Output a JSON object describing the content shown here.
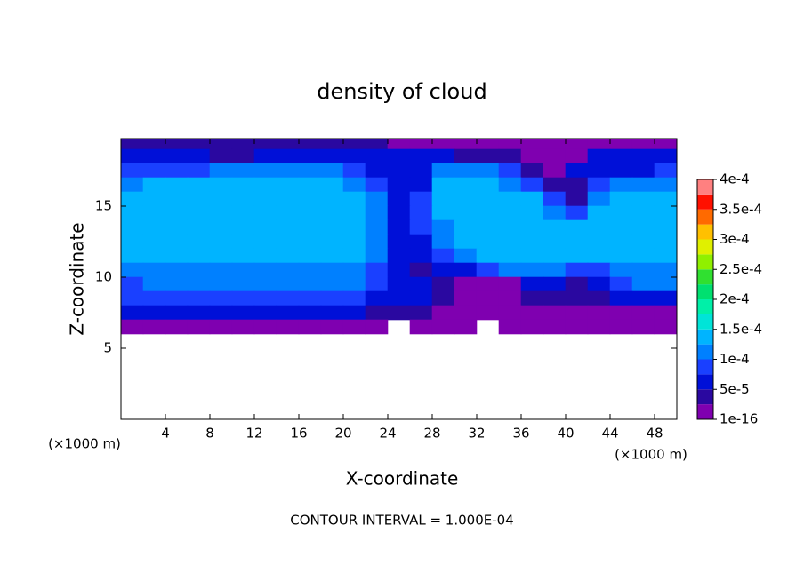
{
  "chart_data": {
    "type": "contour",
    "title": "density of cloud",
    "x_label": "X-coordinate",
    "y_label": "Z-coordinate",
    "x_unit": "(×1000 m)",
    "y_unit": "(×1000 m)",
    "footer": "CONTOUR INTERVAL = 1.000E-04",
    "xlim": [
      0,
      50
    ],
    "ylim": [
      0,
      19.75
    ],
    "xticks": [
      4,
      8,
      12,
      16,
      20,
      24,
      28,
      32,
      36,
      40,
      44,
      48
    ],
    "yticks": [
      5,
      10,
      15
    ],
    "x": [
      1,
      3,
      5,
      7,
      9,
      11,
      13,
      15,
      17,
      19,
      21,
      23,
      25,
      27,
      29,
      31,
      33,
      35,
      37,
      39,
      41,
      43,
      45,
      47,
      49
    ],
    "z": [
      19.5,
      18.5,
      17.5,
      16.5,
      15.5,
      14.5,
      13.5,
      12.5,
      11.5,
      10.5,
      9.5,
      8.5,
      7.5,
      6.5
    ],
    "values": [
      [
        3e-05,
        3e-05,
        3e-05,
        3e-05,
        3e-05,
        3e-05,
        3e-05,
        3e-05,
        3e-05,
        3e-05,
        3e-05,
        3e-05,
        2e-05,
        2e-05,
        2e-05,
        2e-05,
        2e-05,
        2e-05,
        2e-05,
        2e-05,
        2e-05,
        2e-05,
        2e-05,
        2e-05,
        2e-05
      ],
      [
        6e-05,
        6e-05,
        6e-05,
        6e-05,
        4e-05,
        4e-05,
        6e-05,
        6e-05,
        6e-05,
        6e-05,
        6e-05,
        5e-05,
        5e-05,
        5e-05,
        5e-05,
        4e-05,
        4e-05,
        4e-05,
        2e-05,
        2e-05,
        2e-05,
        5e-05,
        5e-05,
        5e-05,
        5e-05
      ],
      [
        8e-05,
        9e-05,
        9e-05,
        9e-05,
        0.00012,
        0.00012,
        0.00012,
        0.00012,
        0.00012,
        0.00012,
        9e-05,
        7e-05,
        6e-05,
        6e-05,
        0.0001,
        0.0001,
        0.0001,
        8e-05,
        3e-05,
        2e-05,
        5e-05,
        7e-05,
        7e-05,
        7e-05,
        8e-05
      ],
      [
        0.000105,
        0.00013,
        0.00013,
        0.00013,
        0.00013,
        0.00013,
        0.00013,
        0.00013,
        0.00013,
        0.00013,
        0.00012,
        9e-05,
        6e-05,
        7e-05,
        0.00013,
        0.00013,
        0.00013,
        0.00012,
        9e-05,
        4e-05,
        3e-05,
        8e-05,
        0.0001,
        0.00012,
        0.00012
      ],
      [
        0.00014,
        0.00014,
        0.00014,
        0.00014,
        0.00014,
        0.00014,
        0.00014,
        0.00014,
        0.00014,
        0.00014,
        0.00013,
        0.00011,
        6e-05,
        8e-05,
        0.00014,
        0.00014,
        0.00014,
        0.00014,
        0.00013,
        8e-05,
        4e-05,
        0.00011,
        0.00014,
        0.00014,
        0.00014
      ],
      [
        0.00014,
        0.00014,
        0.00014,
        0.00014,
        0.00014,
        0.00014,
        0.00014,
        0.00014,
        0.00014,
        0.00014,
        0.00014,
        0.000115,
        5e-05,
        9e-05,
        0.00014,
        0.00014,
        0.00014,
        0.00014,
        0.00014,
        0.00011,
        9e-05,
        0.00014,
        0.00014,
        0.00014,
        0.00014
      ],
      [
        0.000135,
        0.000135,
        0.000135,
        0.000135,
        0.000135,
        0.000135,
        0.000135,
        0.000135,
        0.000135,
        0.000135,
        0.000135,
        0.00011,
        5e-05,
        8e-05,
        0.00012,
        0.000135,
        0.000135,
        0.000135,
        0.000135,
        0.000135,
        0.000135,
        0.000135,
        0.000135,
        0.000135,
        0.000135
      ],
      [
        0.00013,
        0.00013,
        0.00013,
        0.00013,
        0.00013,
        0.00013,
        0.00013,
        0.00013,
        0.00013,
        0.00013,
        0.00013,
        0.000105,
        5e-05,
        7e-05,
        0.00011,
        0.00013,
        0.00013,
        0.00013,
        0.00013,
        0.00013,
        0.00013,
        0.00013,
        0.00013,
        0.00013,
        0.00013
      ],
      [
        0.000125,
        0.000125,
        0.000125,
        0.000125,
        0.000125,
        0.000125,
        0.000125,
        0.000125,
        0.000125,
        0.000125,
        0.000125,
        0.0001,
        6e-05,
        6e-05,
        9e-05,
        0.00011,
        0.000125,
        0.000125,
        0.000125,
        0.000125,
        0.000125,
        0.000125,
        0.000125,
        0.000125,
        0.000125
      ],
      [
        0.00011,
        0.00012,
        0.00012,
        0.00012,
        0.00012,
        0.00012,
        0.00012,
        0.00012,
        0.00012,
        0.00012,
        0.00012,
        9e-05,
        6e-05,
        4e-05,
        5e-05,
        6e-05,
        9e-05,
        0.000115,
        0.000115,
        0.000115,
        9e-05,
        8e-05,
        0.000115,
        0.000115,
        0.000115
      ],
      [
        9e-05,
        0.00011,
        0.00011,
        0.00011,
        0.00011,
        0.00011,
        0.00011,
        0.00011,
        0.00011,
        0.00011,
        0.00011,
        8e-05,
        5e-05,
        5e-05,
        3e-05,
        2e-05,
        2e-05,
        2e-05,
        6e-05,
        5e-05,
        4e-05,
        7e-05,
        9e-05,
        0.0001,
        0.0001
      ],
      [
        8e-05,
        8e-05,
        8e-05,
        8e-05,
        8e-05,
        8e-05,
        8e-05,
        8e-05,
        8e-05,
        8e-05,
        8e-05,
        6e-05,
        5e-05,
        5e-05,
        3e-05,
        2e-05,
        2e-05,
        2e-05,
        4e-05,
        3e-05,
        4e-05,
        3e-05,
        5e-05,
        5e-05,
        5e-05
      ],
      [
        5e-05,
        5e-05,
        5e-05,
        5e-05,
        5e-05,
        5e-05,
        5e-05,
        5e-05,
        5e-05,
        5e-05,
        5e-05,
        4e-05,
        4e-05,
        4e-05,
        2e-05,
        2e-05,
        2e-05,
        2e-05,
        2e-05,
        2e-05,
        2e-05,
        2e-05,
        2e-05,
        2e-05,
        2e-05
      ],
      [
        1.5e-05,
        1.5e-05,
        1.5e-05,
        1.5e-05,
        1.5e-05,
        1.5e-05,
        1.5e-05,
        1.5e-05,
        1.5e-05,
        1.5e-05,
        1.5e-05,
        1.5e-05,
        0,
        1e-05,
        1e-05,
        1e-05,
        0,
        1e-05,
        1e-05,
        1e-05,
        1e-05,
        1e-05,
        1e-05,
        1e-05,
        1e-05
      ]
    ],
    "levels": [
      1e-16,
      2.5e-05,
      5e-05,
      7.5e-05,
      0.0001,
      0.000125,
      0.00015,
      0.000175,
      0.0002,
      0.000225,
      0.00025,
      0.000275,
      0.0003,
      0.000325,
      0.00035,
      0.000375,
      0.0004
    ],
    "colors": [
      "#7f00b0",
      "#2a08a0",
      "#0010d8",
      "#1a40ff",
      "#0080ff",
      "#00b4ff",
      "#00e4d8",
      "#00f0a8",
      "#00e070",
      "#30e030",
      "#90f000",
      "#e0f000",
      "#ffc000",
      "#ff6a00",
      "#ff1000",
      "#ff8080"
    ],
    "colorbar_ticks": [
      {
        "value": 1e-16,
        "label": "1e-16"
      },
      {
        "value": 5e-05,
        "label": "5e-5"
      },
      {
        "value": 0.0001,
        "label": "1e-4"
      },
      {
        "value": 0.00015,
        "label": "1.5e-4"
      },
      {
        "value": 0.0002,
        "label": "2e-4"
      },
      {
        "value": 0.00025,
        "label": "2.5e-4"
      },
      {
        "value": 0.0003,
        "label": "3e-4"
      },
      {
        "value": 0.00035,
        "label": "3.5e-4"
      },
      {
        "value": 0.0004,
        "label": "4e-4"
      }
    ]
  }
}
